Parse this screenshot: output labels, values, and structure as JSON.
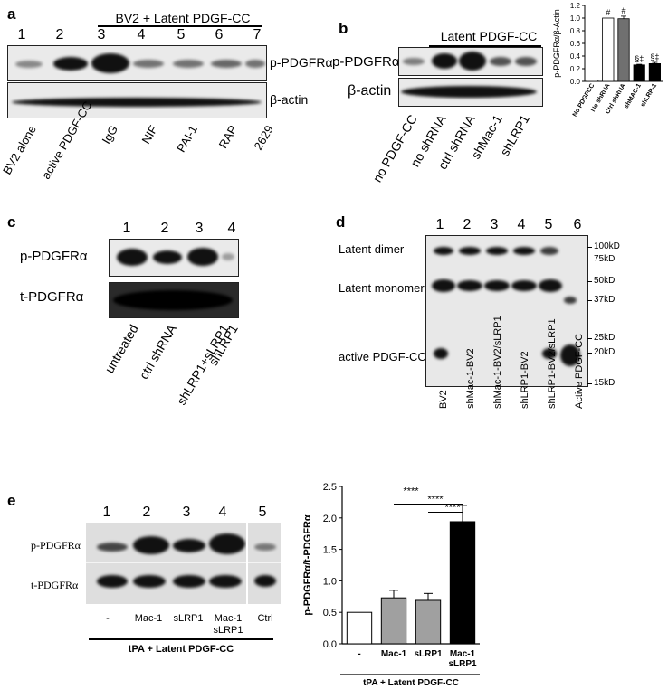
{
  "panel_a": {
    "letter": "a",
    "group_header": "BV2 + Latent PDGF-CC",
    "lanes": [
      "1",
      "2",
      "3",
      "4",
      "5",
      "6",
      "7"
    ],
    "row_labels": [
      "p-PDGFRα",
      "β-actin"
    ],
    "conditions": [
      "BV2 alone",
      "active PDGF-CC",
      "IgG",
      "NIF",
      "PAI-1",
      "RAP",
      "2629"
    ]
  },
  "panel_b": {
    "letter": "b",
    "group_header": "Latent PDGF-CC",
    "row_labels": [
      "p-PDGFRα",
      "β-actin"
    ],
    "conditions": [
      "no PDGF-CC",
      "no shRNA",
      "ctrl shRNA",
      "shMac-1",
      "shLRP1"
    ]
  },
  "panel_c": {
    "letter": "c",
    "lanes": [
      "1",
      "2",
      "3",
      "4"
    ],
    "row_labels": [
      "p-PDGFRα",
      "t-PDGFRα"
    ],
    "conditions": [
      "untreated",
      "ctrl shRNA",
      "shLRP1+sLRP1",
      "shLRP1"
    ]
  },
  "panel_d": {
    "letter": "d",
    "lanes": [
      "1",
      "2",
      "3",
      "4",
      "5",
      "6"
    ],
    "band_labels": [
      "Latent dimer",
      "Latent monomer",
      "active PDGF-CC"
    ],
    "mw_markers": [
      "100kD",
      "75kD",
      "50kD",
      "37kD",
      "25kD",
      "20kD",
      "15kD"
    ],
    "conditions": [
      "BV2",
      "shMac-1-BV2",
      "shMac-1-BV2/sLRP1",
      "shLRP1-BV2",
      "shLRP1-BV2/sLRP1",
      "Active PDGF-CC"
    ]
  },
  "panel_e": {
    "letter": "e",
    "lanes": [
      "1",
      "2",
      "3",
      "4",
      "5"
    ],
    "row_labels": [
      "p-PDGFRα",
      "t-PDGFRα"
    ],
    "conditions": [
      "-",
      "Mac-1",
      "sLRP1",
      "Mac-1 sLRP1",
      "Ctrl"
    ],
    "group_label": "tPA + Latent PDGF-CC"
  },
  "chart_data": [
    {
      "type": "bar",
      "panel": "b",
      "categories": [
        "No PDGFCC",
        "No shRNA",
        "Ctrl shRNA",
        "shMAC-1",
        "shLRP-1"
      ],
      "values": [
        0.02,
        1.0,
        0.99,
        0.26,
        0.28
      ],
      "errors": [
        0.0,
        0.0,
        0.04,
        0.01,
        0.02
      ],
      "annotations": [
        "",
        "#",
        "#",
        "§‡",
        "§‡"
      ],
      "bar_colors": [
        "#ffffff",
        "#ffffff",
        "#707070",
        "#000000",
        "#000000"
      ],
      "ylabel": "p-PDGFRα/β-Actin",
      "ylim": [
        0,
        1.2
      ],
      "yticks": [
        "0.0",
        "0.2",
        "0.4",
        "0.6",
        "0.8",
        "1.0",
        "1.2"
      ]
    },
    {
      "type": "bar",
      "panel": "e",
      "categories": [
        "-",
        "Mac-1",
        "sLRP1",
        "Mac-1 sLRP1"
      ],
      "values": [
        0.5,
        0.73,
        0.69,
        1.94
      ],
      "errors": [
        0.0,
        0.12,
        0.11,
        0.26
      ],
      "bar_colors": [
        "#ffffff",
        "#a0a0a0",
        "#a0a0a0",
        "#000000"
      ],
      "ylabel": "p-PDGFRα/t-PDGFRα",
      "ylim": [
        0,
        2.5
      ],
      "yticks": [
        "0.0",
        "0.5",
        "1.0",
        "1.5",
        "2.0",
        "2.5"
      ],
      "significance": [
        "****",
        "****",
        "****"
      ],
      "group_label": "tPA + Latent PDGF-CC"
    }
  ]
}
